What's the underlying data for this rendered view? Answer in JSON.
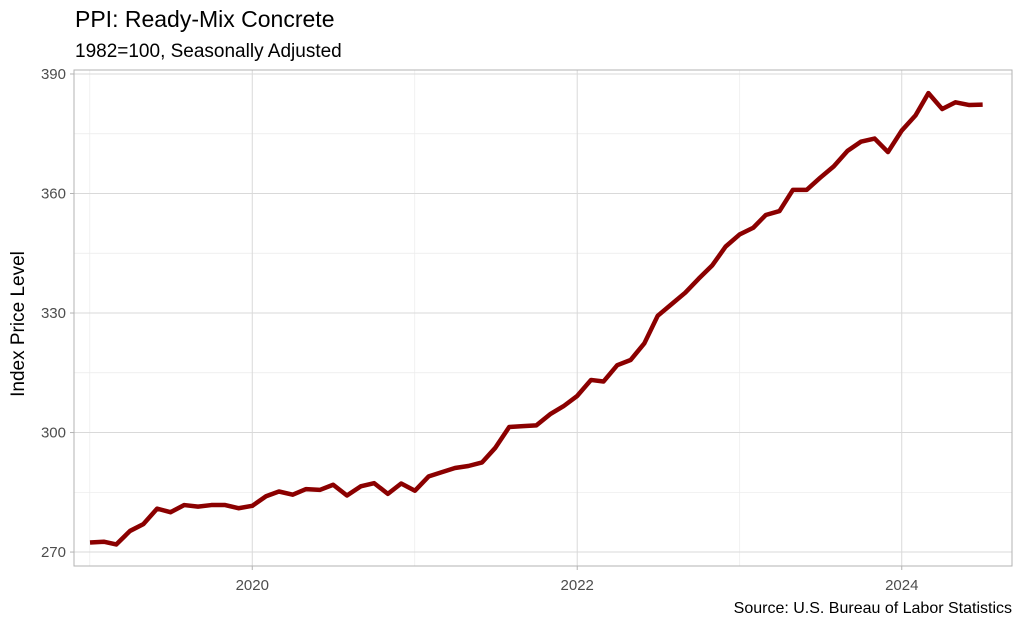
{
  "chart_data": {
    "type": "line",
    "title": "PPI: Ready-Mix Concrete",
    "subtitle": "1982=100, Seasonally Adjusted",
    "ylabel": "Index Price Level",
    "xlabel": "",
    "caption": "Source: U.S. Bureau of Labor Statistics",
    "ylim": [
      266.5,
      391.0
    ],
    "xlim": [
      "2018-11-26",
      "2024-09-05"
    ],
    "x_ticks": [
      "2020",
      "2022",
      "2024"
    ],
    "y_ticks": [
      270,
      300,
      330,
      360,
      390
    ],
    "grid": true,
    "legend": "none",
    "line_color": "#8b0000",
    "series": [
      {
        "x": [
          "2019-01",
          "2019-02",
          "2019-03",
          "2019-04",
          "2019-05",
          "2019-06",
          "2019-07",
          "2019-08",
          "2019-09",
          "2019-10",
          "2019-11",
          "2019-12",
          "2020-01",
          "2020-02",
          "2020-03",
          "2020-04",
          "2020-05",
          "2020-06",
          "2020-07",
          "2020-08",
          "2020-09",
          "2020-10",
          "2020-11",
          "2020-12",
          "2021-01",
          "2021-02",
          "2021-03",
          "2021-04",
          "2021-05",
          "2021-06",
          "2021-07",
          "2021-08",
          "2021-09",
          "2021-10",
          "2021-11",
          "2021-12",
          "2022-01",
          "2022-02",
          "2022-03",
          "2022-04",
          "2022-05",
          "2022-06",
          "2022-07",
          "2022-08",
          "2022-09",
          "2022-10",
          "2022-11",
          "2022-12",
          "2023-01",
          "2023-02",
          "2023-03",
          "2023-04",
          "2023-05",
          "2023-06",
          "2023-07",
          "2023-08",
          "2023-09",
          "2023-10",
          "2023-11",
          "2023-12",
          "2024-01",
          "2024-02",
          "2024-03",
          "2024-04",
          "2024-05",
          "2024-06",
          "2024-07"
        ],
        "values": [
          272.4,
          272.6,
          271.9,
          275.3,
          277.0,
          280.9,
          280.0,
          281.8,
          281.4,
          281.8,
          281.8,
          281.0,
          281.6,
          284.0,
          285.2,
          284.4,
          285.8,
          285.6,
          286.9,
          284.2,
          286.5,
          287.3,
          284.6,
          287.2,
          285.4,
          289.0,
          290.0,
          291.1,
          291.6,
          292.5,
          296.2,
          301.4,
          301.6,
          301.8,
          304.6,
          306.6,
          309.2,
          313.2,
          312.8,
          316.9,
          318.2,
          322.4,
          329.3,
          332.2,
          335.1,
          338.6,
          342.0,
          346.7,
          349.7,
          351.4,
          354.6,
          355.6,
          360.9,
          360.9,
          363.9,
          366.8,
          370.7,
          373.0,
          373.8,
          370.4,
          375.8,
          379.6,
          385.2,
          381.2,
          382.9,
          382.2,
          382.3
        ]
      }
    ]
  }
}
